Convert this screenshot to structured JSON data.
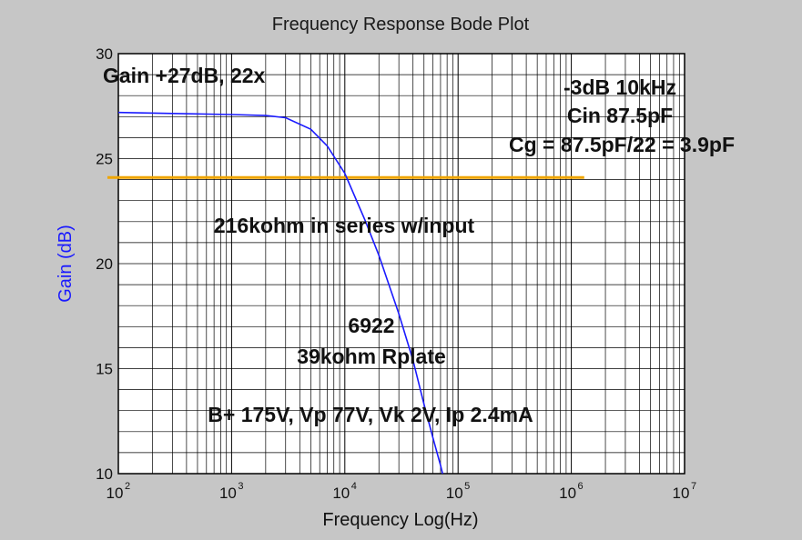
{
  "chart_data": {
    "type": "line",
    "title": "Frequency Response Bode Plot",
    "xlabel": "Frequency Log(Hz)",
    "ylabel": "Gain (dB)",
    "x_scale": "log",
    "xlim": [
      100,
      10000000
    ],
    "ylim": [
      10,
      30
    ],
    "x_ticks": [
      {
        "base": "10",
        "exp": "2",
        "value": 100
      },
      {
        "base": "10",
        "exp": "3",
        "value": 1000
      },
      {
        "base": "10",
        "exp": "4",
        "value": 10000
      },
      {
        "base": "10",
        "exp": "5",
        "value": 100000
      },
      {
        "base": "10",
        "exp": "6",
        "value": 1000000
      },
      {
        "base": "10",
        "exp": "7",
        "value": 10000000
      }
    ],
    "y_ticks": [
      "10",
      "15",
      "20",
      "25",
      "30"
    ],
    "grid": true,
    "series": [
      {
        "color": "#1a1aff",
        "x": [
          100,
          300,
          1000,
          2000,
          3000,
          5000,
          7000,
          10000,
          15000,
          20000,
          30000,
          40000,
          50000,
          60000,
          70000,
          73000
        ],
        "y": [
          27.2,
          27.15,
          27.1,
          27.05,
          26.95,
          26.4,
          25.6,
          24.3,
          22.1,
          20.4,
          17.6,
          15.4,
          13.3,
          11.7,
          10.4,
          10.0
        ]
      }
    ],
    "reference_line": {
      "y": 24.1,
      "x_range": [
        100,
        1300000
      ],
      "color": "#f0a500"
    },
    "annotations": [
      {
        "id": "gain",
        "text": "Gain +27dB, 22x"
      },
      {
        "id": "minus3db",
        "text": "-3dB 10kHz"
      },
      {
        "id": "cin",
        "text": "Cin 87.5pF"
      },
      {
        "id": "cg",
        "text": "Cg = 87.5pF/22 = 3.9pF"
      },
      {
        "id": "series",
        "text": "216kohm in series w/input"
      },
      {
        "id": "tube",
        "text": "6922"
      },
      {
        "id": "rplate",
        "text": "39kohm Rplate"
      },
      {
        "id": "bias",
        "text": "B+ 175V, Vp 77V, Vk 2V, Ip 2.4mA"
      }
    ]
  },
  "colors": {
    "background": "#c6c6c6",
    "plot_area": "#ffffff",
    "grid": "#000000",
    "ylabel": "#1a1aff"
  }
}
